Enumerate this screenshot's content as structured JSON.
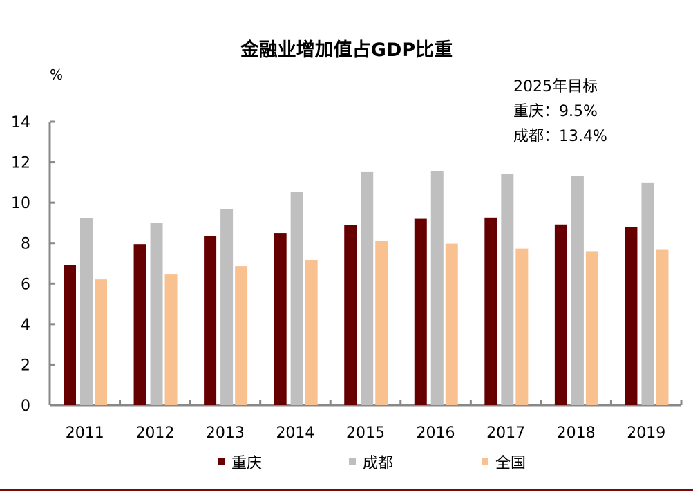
{
  "chart_data": {
    "type": "bar",
    "title": "金融业增加值占GDP比重",
    "ylabel": "%",
    "xlabel": "",
    "ylim": [
      0,
      14
    ],
    "yticks": [
      0,
      2,
      4,
      6,
      8,
      10,
      12,
      14
    ],
    "grid": false,
    "legend_position": "bottom",
    "categories": [
      "2011",
      "2012",
      "2013",
      "2014",
      "2015",
      "2016",
      "2017",
      "2018",
      "2019"
    ],
    "series": [
      {
        "name": "重庆",
        "color": "#660000",
        "values": [
          6.93,
          7.95,
          8.36,
          8.5,
          8.89,
          9.2,
          9.26,
          8.92,
          8.79
        ]
      },
      {
        "name": "成都",
        "color": "#bfbfbf",
        "values": [
          9.25,
          8.98,
          9.69,
          10.55,
          11.51,
          11.55,
          11.44,
          11.31,
          11.0
        ]
      },
      {
        "name": "全国",
        "color": "#f9c190",
        "values": [
          6.21,
          6.45,
          6.86,
          7.17,
          8.11,
          7.97,
          7.73,
          7.6,
          7.7
        ]
      }
    ],
    "annotation": [
      "2025年目标",
      "重庆：9.5%",
      "成都：13.4%"
    ]
  }
}
